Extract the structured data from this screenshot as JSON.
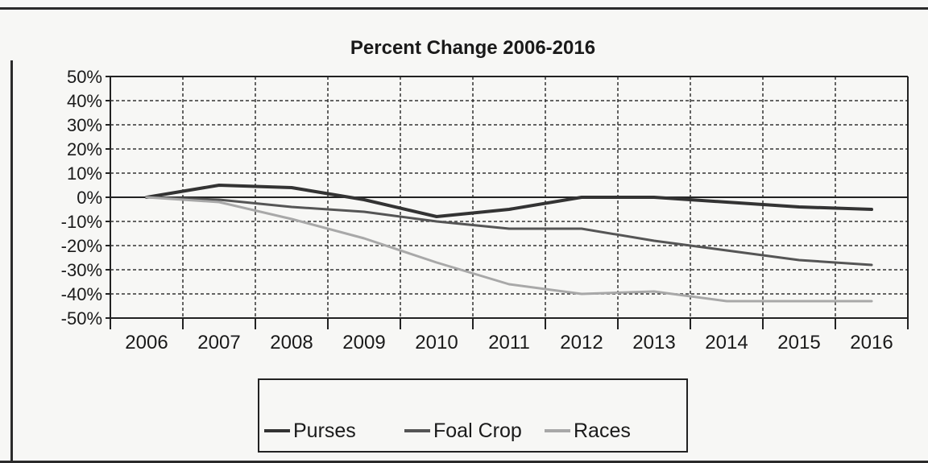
{
  "chart_data": {
    "type": "line",
    "title": "Percent Change 2006-2016",
    "xlabel": "",
    "ylabel": "",
    "categories": [
      "2006",
      "2007",
      "2008",
      "2009",
      "2010",
      "2011",
      "2012",
      "2013",
      "2014",
      "2015",
      "2016"
    ],
    "y_ticks": [
      "50%",
      "40%",
      "30%",
      "20%",
      "10%",
      "0%",
      "-10%",
      "-20%",
      "-30%",
      "-40%",
      "-50%"
    ],
    "ylim": [
      -50,
      50
    ],
    "grid": true,
    "legend_position": "bottom",
    "series": [
      {
        "name": "Purses",
        "color": "#333333",
        "values": [
          0,
          5,
          4,
          -1,
          -8,
          -5,
          0,
          0,
          -2,
          -4,
          -5
        ]
      },
      {
        "name": "Foal Crop",
        "color": "#555555",
        "values": [
          0,
          -1,
          -4,
          -6,
          -10,
          -13,
          -13,
          -18,
          -22,
          -26,
          -28
        ]
      },
      {
        "name": "Races",
        "color": "#a8a8a8",
        "values": [
          0,
          -2,
          -9,
          -17,
          -27,
          -36,
          -40,
          -39,
          -43,
          -43,
          -43
        ]
      }
    ]
  }
}
